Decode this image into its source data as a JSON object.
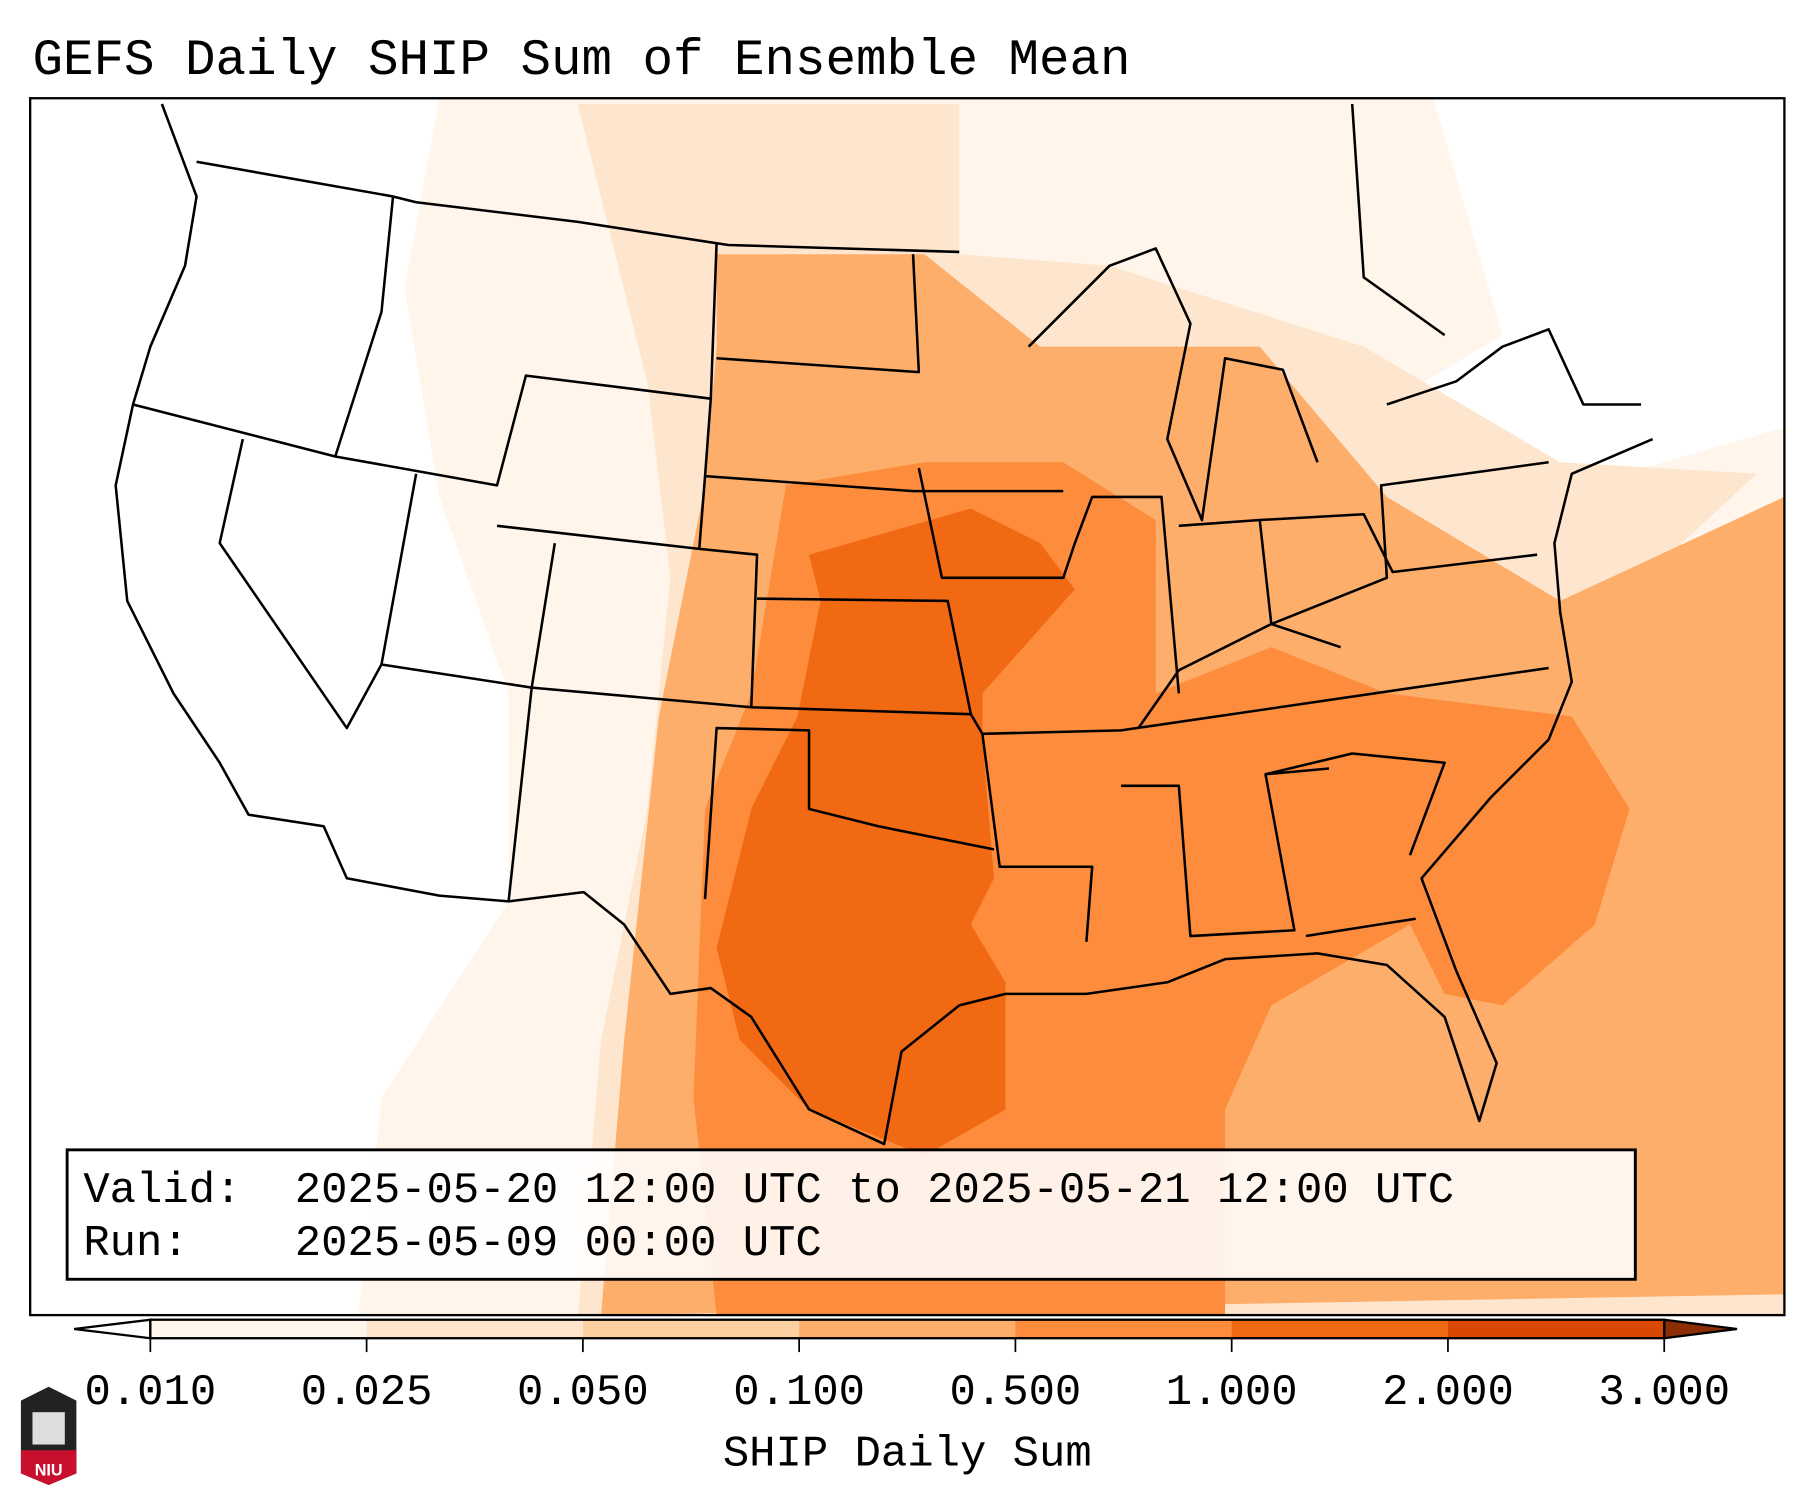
{
  "title": "GEFS Daily SHIP Sum of Ensemble Mean",
  "info_box": {
    "valid_label": "Valid:",
    "valid_value": "2025-05-20 12:00 UTC to 2025-05-21 12:00 UTC",
    "run_label": "Run:",
    "run_value": "2025-05-09 00:00 UTC"
  },
  "colorbar": {
    "label": "SHIP Daily Sum",
    "ticks": [
      "0.010",
      "0.025",
      "0.050",
      "0.100",
      "0.500",
      "1.000",
      "2.000",
      "3.000"
    ],
    "colors": [
      "#fff5eb",
      "#fee6ce",
      "#fdd0a2",
      "#fdae6b",
      "#fd8d3c",
      "#f16913",
      "#d94801",
      "#8c2d04"
    ],
    "under_color": "#ffffff"
  },
  "logo": {
    "text": "NIU"
  }
}
